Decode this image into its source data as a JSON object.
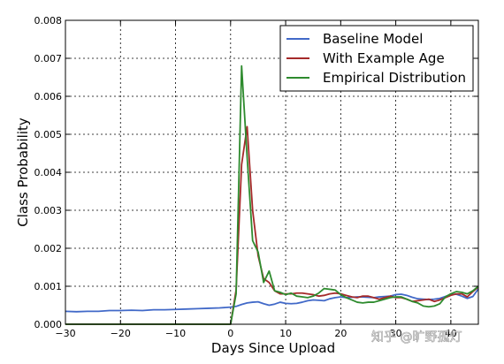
{
  "chart_data": {
    "type": "line",
    "title": "",
    "xlabel": "Days Since Upload",
    "ylabel": "Class Probability",
    "xlim": [
      -30,
      45
    ],
    "ylim": [
      0,
      0.008
    ],
    "x_ticks": [
      -30,
      -20,
      -10,
      0,
      10,
      20,
      30,
      40
    ],
    "y_ticks": [
      0.0,
      0.001,
      0.002,
      0.003,
      0.004,
      0.005,
      0.006,
      0.007,
      0.008
    ],
    "x_tick_labels": [
      "−30",
      "−20",
      "−10",
      "0",
      "10",
      "20",
      "30",
      "40"
    ],
    "y_tick_labels": [
      "0.000",
      "0.001",
      "0.002",
      "0.003",
      "0.004",
      "0.005",
      "0.006",
      "0.007",
      "0.008"
    ],
    "grid": true,
    "legend_position": "top-right",
    "series": [
      {
        "name": "Baseline Model",
        "color": "#4169c8",
        "x": [
          -30,
          -28,
          -26,
          -24,
          -22,
          -20,
          -18,
          -16,
          -14,
          -12,
          -10,
          -8,
          -6,
          -4,
          -2,
          0,
          1,
          2,
          3,
          4,
          5,
          6,
          7,
          8,
          9,
          10,
          11,
          12,
          13,
          14,
          15,
          16,
          17,
          18,
          19,
          20,
          21,
          22,
          23,
          24,
          25,
          26,
          27,
          28,
          29,
          30,
          31,
          32,
          33,
          34,
          35,
          36,
          37,
          38,
          39,
          40,
          41,
          42,
          43,
          44,
          45
        ],
        "y": [
          0.00034,
          0.00033,
          0.00034,
          0.00034,
          0.00036,
          0.00036,
          0.00037,
          0.00036,
          0.00038,
          0.00038,
          0.00039,
          0.0004,
          0.00041,
          0.00042,
          0.00043,
          0.00045,
          0.00047,
          0.00052,
          0.00056,
          0.00058,
          0.00059,
          0.00054,
          0.0005,
          0.00053,
          0.00058,
          0.00055,
          0.00054,
          0.00055,
          0.00058,
          0.00062,
          0.00064,
          0.00063,
          0.00062,
          0.00067,
          0.0007,
          0.00072,
          0.0007,
          0.00071,
          0.00072,
          0.00072,
          0.00071,
          0.0007,
          0.00072,
          0.00073,
          0.00074,
          0.00078,
          0.00079,
          0.00076,
          0.00071,
          0.00067,
          0.00066,
          0.00065,
          0.00066,
          0.00068,
          0.00073,
          0.00078,
          0.00079,
          0.00074,
          0.00068,
          0.00073,
          0.00093
        ]
      },
      {
        "name": "With Example Age",
        "color": "#a52a2a",
        "x": [
          -30,
          -28,
          -26,
          -24,
          -22,
          -20,
          -18,
          -16,
          -14,
          -12,
          -10,
          -8,
          -6,
          -4,
          -2,
          0,
          1,
          2,
          3,
          4,
          5,
          6,
          7,
          8,
          9,
          10,
          11,
          12,
          13,
          14,
          15,
          16,
          17,
          18,
          19,
          20,
          21,
          22,
          23,
          24,
          25,
          26,
          27,
          28,
          29,
          30,
          31,
          32,
          33,
          34,
          35,
          36,
          37,
          38,
          39,
          40,
          41,
          42,
          43,
          44,
          45
        ],
        "y": [
          0,
          0,
          0,
          0,
          0,
          0,
          0,
          0,
          0,
          0,
          0,
          0,
          0,
          0,
          0,
          0,
          0.0009,
          0.0042,
          0.0052,
          0.003,
          0.0018,
          0.0012,
          0.0011,
          0.00088,
          0.0008,
          0.0008,
          0.0008,
          0.00082,
          0.00082,
          0.0008,
          0.00078,
          0.00074,
          0.00076,
          0.0008,
          0.00082,
          0.0008,
          0.00076,
          0.00072,
          0.0007,
          0.00074,
          0.00074,
          0.0007,
          0.00066,
          0.0007,
          0.00074,
          0.0007,
          0.0007,
          0.00066,
          0.0006,
          0.00062,
          0.00064,
          0.00066,
          0.0006,
          0.00064,
          0.0007,
          0.00076,
          0.0008,
          0.0008,
          0.00072,
          0.00086,
          0.00098
        ]
      },
      {
        "name": "Empirical Distribution",
        "color": "#2e8b2e",
        "x": [
          -30,
          -28,
          -26,
          -24,
          -22,
          -20,
          -18,
          -16,
          -14,
          -12,
          -10,
          -8,
          -6,
          -4,
          -2,
          0,
          1,
          2,
          3,
          4,
          5,
          6,
          7,
          8,
          9,
          10,
          11,
          12,
          13,
          14,
          15,
          16,
          17,
          18,
          19,
          20,
          21,
          22,
          23,
          24,
          25,
          26,
          27,
          28,
          29,
          30,
          31,
          32,
          33,
          34,
          35,
          36,
          37,
          38,
          39,
          40,
          41,
          42,
          43,
          44,
          45
        ],
        "y": [
          0,
          0,
          0,
          0,
          0,
          0,
          0,
          0,
          0,
          0,
          0,
          0,
          0,
          0,
          0,
          0,
          0.0008,
          0.0068,
          0.0044,
          0.0022,
          0.0019,
          0.0011,
          0.0014,
          0.00088,
          0.00084,
          0.00078,
          0.00082,
          0.00074,
          0.00072,
          0.0007,
          0.00074,
          0.00082,
          0.00094,
          0.00092,
          0.0009,
          0.00078,
          0.0007,
          0.00064,
          0.00058,
          0.00056,
          0.00058,
          0.00058,
          0.00062,
          0.00066,
          0.0007,
          0.00072,
          0.00072,
          0.00066,
          0.0006,
          0.00056,
          0.00048,
          0.00046,
          0.00048,
          0.00054,
          0.00072,
          0.0008,
          0.00086,
          0.00084,
          0.0008,
          0.00088,
          0.001
        ]
      }
    ]
  },
  "watermark": "知乎 @旷野孤灯"
}
